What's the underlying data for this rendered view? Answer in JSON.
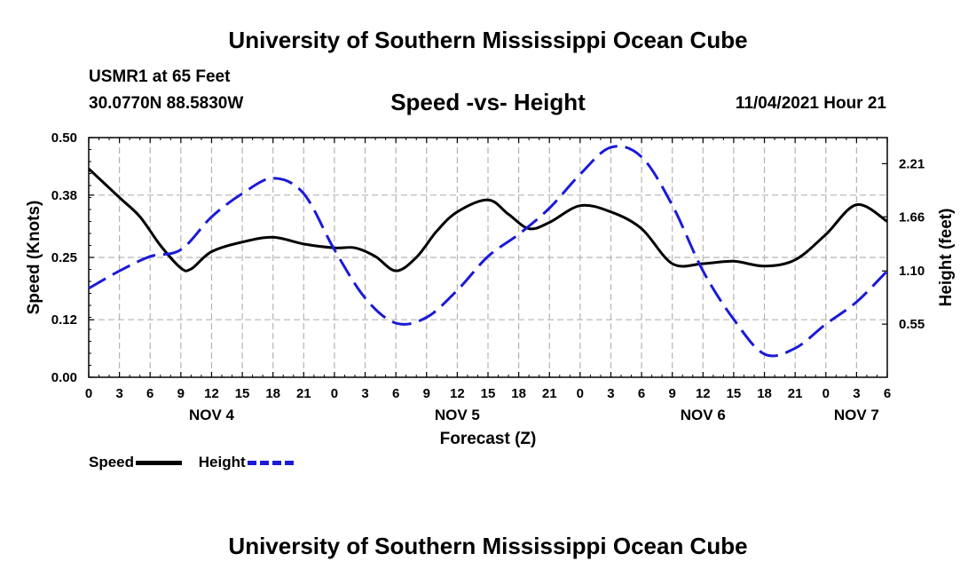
{
  "header": {
    "top_title": "University of Southern Mississippi Ocean Cube",
    "station": "USMR1 at 65 Feet",
    "coords": "30.0770N  88.5830W",
    "chart_title": "Speed -vs- Height",
    "date_hour": "11/04/2021 Hour 21"
  },
  "footer": {
    "title": "University of Southern Mississippi Ocean Cube"
  },
  "legend": {
    "speed_label": "Speed",
    "height_label": "Height"
  },
  "colors": {
    "speed": "#000000",
    "height": "#1a1ad8",
    "grid": "#b4b4b4"
  },
  "chart_data": {
    "type": "line",
    "title": "Speed -vs- Height",
    "xlabel": "Forecast (Z)",
    "ylabel": "Speed (Knots)",
    "y2label": "Height (feet)",
    "x_hours_range": [
      0,
      78
    ],
    "x_tick_labels": [
      "0",
      "3",
      "6",
      "9",
      "12",
      "15",
      "18",
      "21",
      "0",
      "3",
      "6",
      "9",
      "12",
      "15",
      "18",
      "21",
      "0",
      "3",
      "6",
      "9",
      "12",
      "15",
      "18",
      "21",
      "0",
      "3",
      "6"
    ],
    "day_labels": [
      {
        "label": "NOV 4",
        "hour": 12
      },
      {
        "label": "NOV 5",
        "hour": 36
      },
      {
        "label": "NOV 6",
        "hour": 60
      },
      {
        "label": "NOV 7",
        "hour": 75
      }
    ],
    "ylim": [
      0,
      0.5
    ],
    "yticks": [
      "0.00",
      "0.12",
      "0.25",
      "0.38",
      "0.50"
    ],
    "y2lim": [
      0,
      2.48
    ],
    "y2ticks": [
      "0.55",
      "1.10",
      "1.66",
      "2.21"
    ],
    "legend_position": "bottom-left",
    "series": [
      {
        "name": "Speed",
        "axis": "left",
        "style": "solid",
        "x": [
          0,
          3,
          5,
          7,
          9,
          10,
          12,
          15,
          18,
          21,
          24,
          26,
          28,
          30,
          32,
          34,
          36,
          39,
          41,
          43,
          45,
          48,
          51,
          54,
          57,
          60,
          63,
          66,
          69,
          72,
          75,
          78
        ],
        "y": [
          0.435,
          0.375,
          0.335,
          0.275,
          0.228,
          0.226,
          0.262,
          0.282,
          0.292,
          0.278,
          0.27,
          0.27,
          0.252,
          0.222,
          0.25,
          0.305,
          0.345,
          0.37,
          0.34,
          0.31,
          0.323,
          0.358,
          0.345,
          0.31,
          0.237,
          0.237,
          0.242,
          0.232,
          0.245,
          0.298,
          0.36,
          0.325
        ]
      },
      {
        "name": "Height",
        "axis": "right",
        "style": "dashed",
        "x": [
          0,
          3,
          6,
          9,
          12,
          15,
          18,
          21,
          24,
          27,
          30,
          33,
          36,
          39,
          42,
          45,
          48,
          51,
          54,
          57,
          60,
          63,
          66,
          69,
          72,
          75,
          78
        ],
        "y": [
          0.92,
          1.1,
          1.25,
          1.32,
          1.66,
          1.9,
          2.06,
          1.9,
          1.32,
          0.82,
          0.56,
          0.62,
          0.9,
          1.25,
          1.48,
          1.75,
          2.1,
          2.38,
          2.28,
          1.78,
          1.1,
          0.6,
          0.24,
          0.3,
          0.55,
          0.78,
          1.1
        ]
      }
    ]
  }
}
